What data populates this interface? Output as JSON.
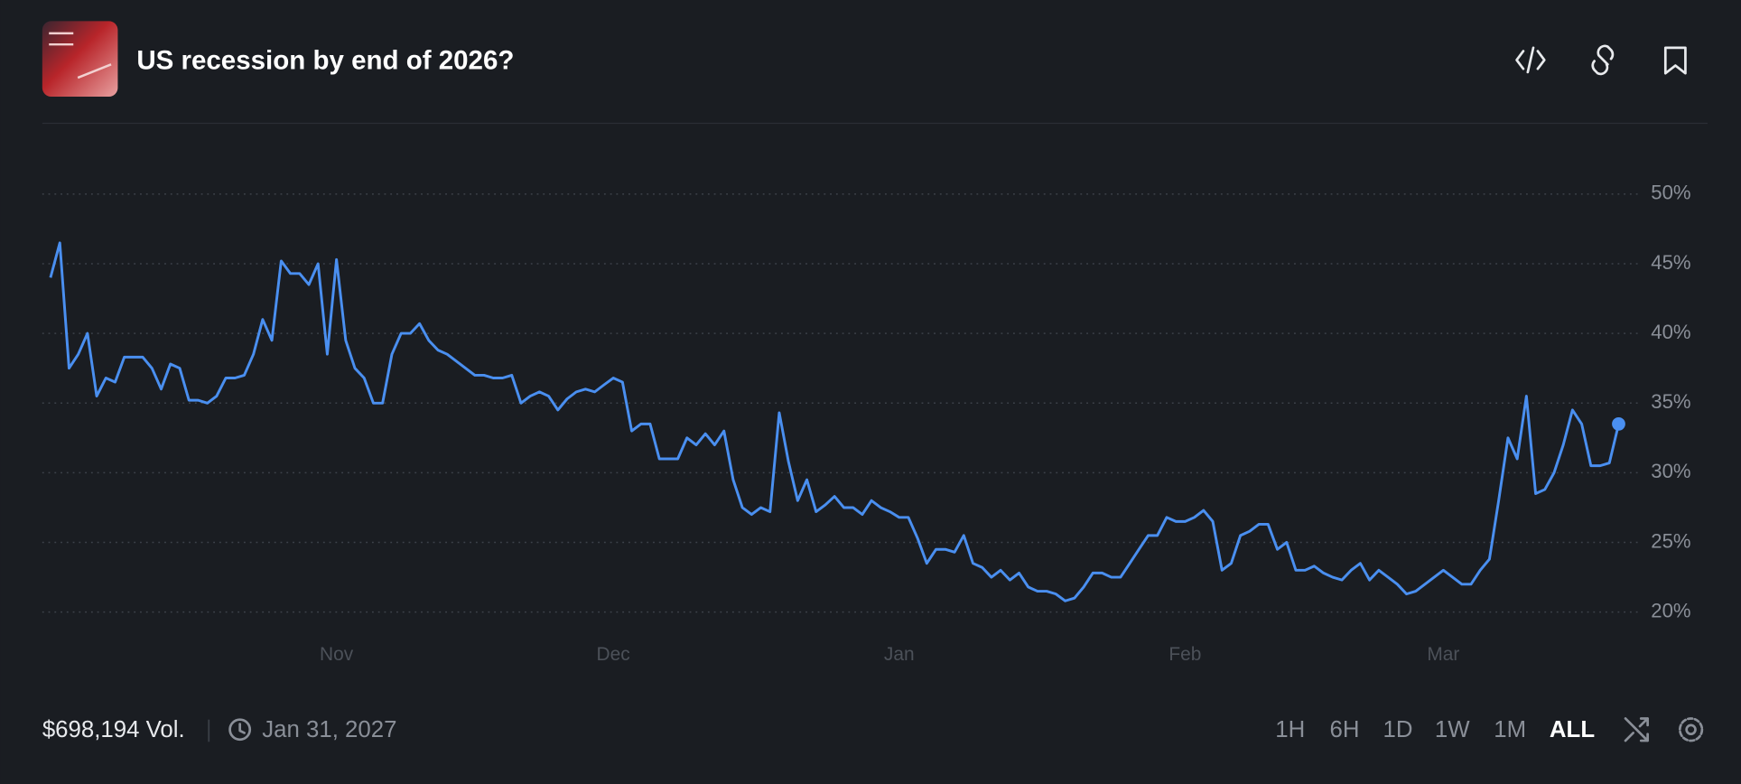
{
  "header": {
    "title": "US recession by end of 2026?"
  },
  "chart_data": {
    "type": "line",
    "categories": [
      null,
      null,
      null,
      null,
      null,
      null,
      null,
      null,
      null,
      null,
      null,
      null,
      null,
      null,
      null,
      null,
      null,
      null,
      null,
      null,
      null,
      null,
      null,
      null,
      null,
      null,
      null,
      null,
      null,
      null,
      null,
      "Nov",
      null,
      null,
      null,
      null,
      null,
      null,
      null,
      null,
      null,
      null,
      null,
      null,
      null,
      null,
      null,
      null,
      null,
      null,
      null,
      null,
      null,
      null,
      null,
      null,
      null,
      null,
      null,
      null,
      null,
      "Dec",
      null,
      null,
      null,
      null,
      null,
      null,
      null,
      null,
      null,
      null,
      null,
      null,
      null,
      null,
      null,
      null,
      null,
      null,
      null,
      null,
      null,
      null,
      null,
      null,
      null,
      null,
      null,
      null,
      null,
      null,
      "Jan",
      null,
      null,
      null,
      null,
      null,
      null,
      null,
      null,
      null,
      null,
      null,
      null,
      null,
      null,
      null,
      null,
      null,
      null,
      null,
      null,
      null,
      null,
      null,
      null,
      null,
      null,
      null,
      null,
      null,
      null,
      "Feb",
      null,
      null,
      null,
      null,
      null,
      null,
      null,
      null,
      null,
      null,
      null,
      null,
      null,
      null,
      null,
      null,
      null,
      null,
      null,
      null,
      null,
      null,
      null,
      null,
      null,
      null,
      null,
      "Mar",
      null,
      null,
      null,
      null,
      null,
      null,
      null,
      null,
      null,
      null,
      null,
      null,
      null,
      null,
      null,
      null,
      null,
      null,
      null
    ],
    "values": [
      44,
      46.5,
      37.5,
      38.5,
      40,
      35.5,
      36.8,
      36.5,
      38.3,
      38.3,
      38.3,
      37.5,
      36,
      37.8,
      37.5,
      35.2,
      35.2,
      35,
      35.5,
      36.8,
      36.8,
      37,
      38.5,
      41,
      39.5,
      45.2,
      44.3,
      44.3,
      43.5,
      45,
      38.5,
      45.3,
      39.5,
      37.5,
      36.8,
      35,
      35,
      38.5,
      40,
      40,
      40.7,
      39.5,
      38.8,
      38.5,
      38,
      37.5,
      37,
      37,
      36.8,
      36.8,
      37,
      35,
      35.5,
      35.8,
      35.5,
      34.5,
      35.3,
      35.8,
      36,
      35.8,
      36.3,
      36.8,
      36.5,
      33,
      33.5,
      33.5,
      31,
      31,
      31,
      32.5,
      32,
      32.8,
      32,
      33,
      29.5,
      27.5,
      27,
      27.5,
      27.2,
      34.3,
      30.8,
      28,
      29.5,
      27.2,
      27.7,
      28.3,
      27.5,
      27.5,
      27,
      28,
      27.5,
      27.2,
      26.8,
      26.8,
      25.3,
      23.5,
      24.5,
      24.5,
      24.3,
      25.5,
      23.5,
      23.2,
      22.5,
      23,
      22.3,
      22.8,
      21.8,
      21.5,
      21.5,
      21.3,
      20.8,
      21,
      21.8,
      22.8,
      22.8,
      22.5,
      22.5,
      23.5,
      24.5,
      25.5,
      25.5,
      26.8,
      26.5,
      26.5,
      26.8,
      27.3,
      26.5,
      23,
      23.5,
      25.5,
      25.8,
      26.3,
      26.3,
      24.5,
      25,
      23,
      23,
      23.3,
      22.8,
      22.5,
      22.3,
      23,
      23.5,
      22.3,
      23,
      22.5,
      22,
      21.3,
      21.5,
      22,
      22.5,
      23,
      22.5,
      22,
      22,
      23,
      23.8,
      28,
      32.5,
      31,
      35.5,
      28.5,
      28.8,
      30,
      32,
      34.5,
      33.5,
      30.5,
      30.5,
      30.7,
      33.5
    ],
    "color": "#4a8ff0",
    "ylim": [
      18.5,
      55
    ],
    "yticks": [
      {
        "value": 20,
        "label": "20%"
      },
      {
        "value": 25,
        "label": "25%"
      },
      {
        "value": 30,
        "label": "30%"
      },
      {
        "value": 35,
        "label": "35%"
      },
      {
        "value": 40,
        "label": "40%"
      },
      {
        "value": 45,
        "label": "45%"
      },
      {
        "value": 50,
        "label": "50%"
      }
    ],
    "grid": true
  },
  "footer": {
    "volume": "$698,194 Vol.",
    "end_date": "Jan 31, 2027",
    "ranges": [
      "1H",
      "6H",
      "1D",
      "1W",
      "1M",
      "ALL"
    ]
  }
}
